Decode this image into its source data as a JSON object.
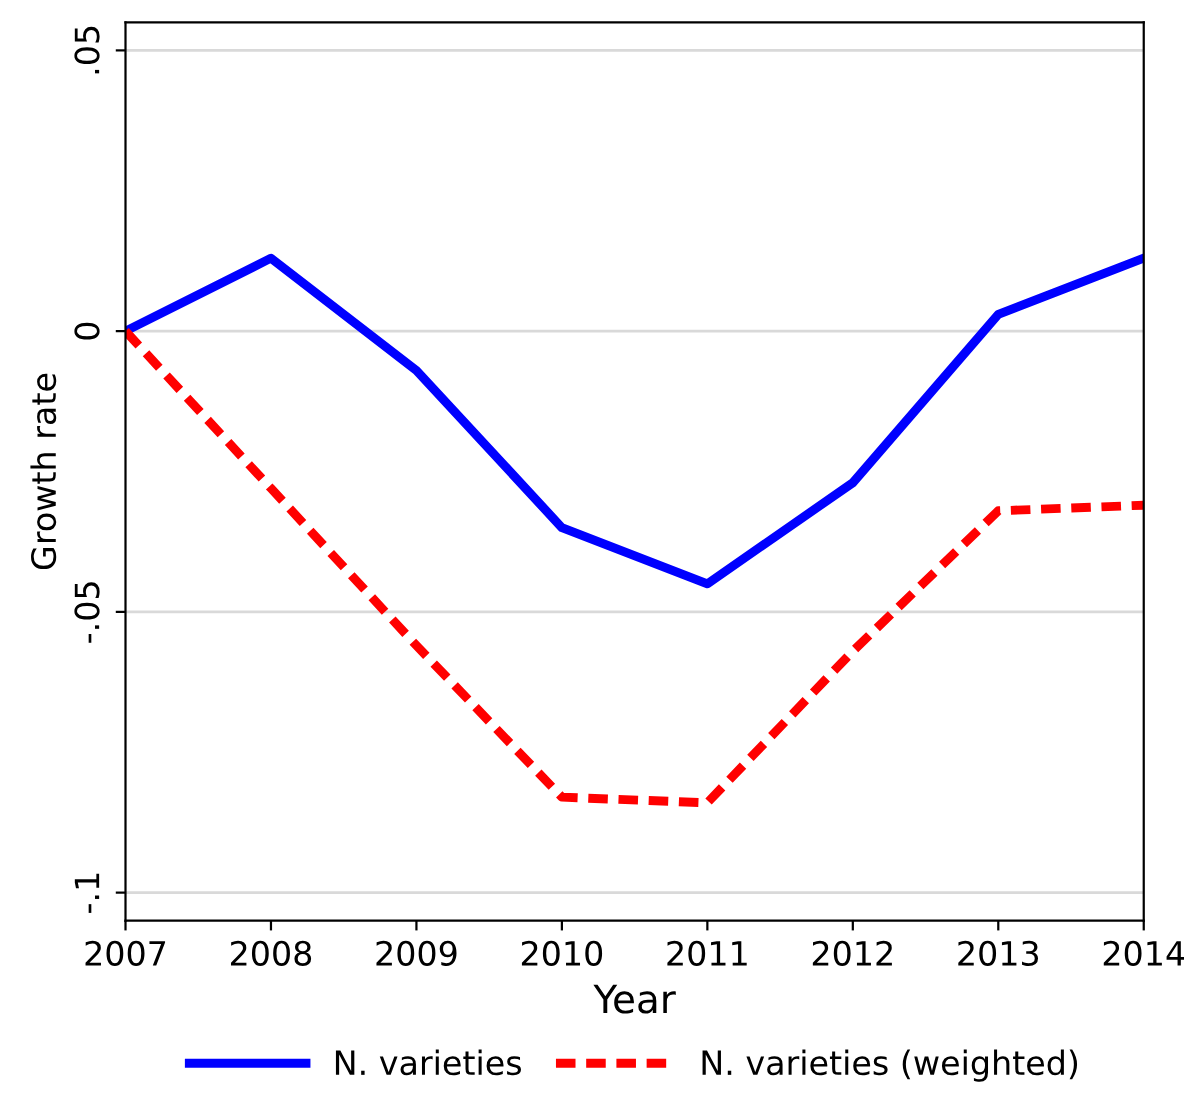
{
  "chart_data": {
    "type": "line",
    "xlabel": "Year",
    "ylabel": "Growth rate",
    "x": [
      2007,
      2008,
      2009,
      2010,
      2011,
      2012,
      2013,
      2014
    ],
    "series": [
      {
        "name": "N. varieties",
        "color": "#0000ff",
        "line_style": "solid",
        "values": [
          0,
          0.013,
          -0.007,
          -0.035,
          -0.045,
          -0.027,
          0.003,
          0.013
        ]
      },
      {
        "name": "N. varieties (weighted)",
        "color": "#ff0000",
        "line_style": "dashed",
        "values": [
          0,
          -0.028,
          -0.056,
          -0.083,
          -0.084,
          -0.057,
          -0.032,
          -0.031
        ]
      }
    ],
    "xlim": [
      2007,
      2014
    ],
    "xticks": [
      2007,
      2008,
      2009,
      2010,
      2011,
      2012,
      2013,
      2014
    ],
    "ylim": [
      -0.105,
      0.055
    ],
    "yticks": [
      {
        "value": -0.1,
        "label": "-.1"
      },
      {
        "value": -0.05,
        "label": "-.05"
      },
      {
        "value": 0,
        "label": "0"
      },
      {
        "value": 0.05,
        "label": ".05"
      }
    ],
    "grid": "y",
    "legend": "bottom"
  }
}
